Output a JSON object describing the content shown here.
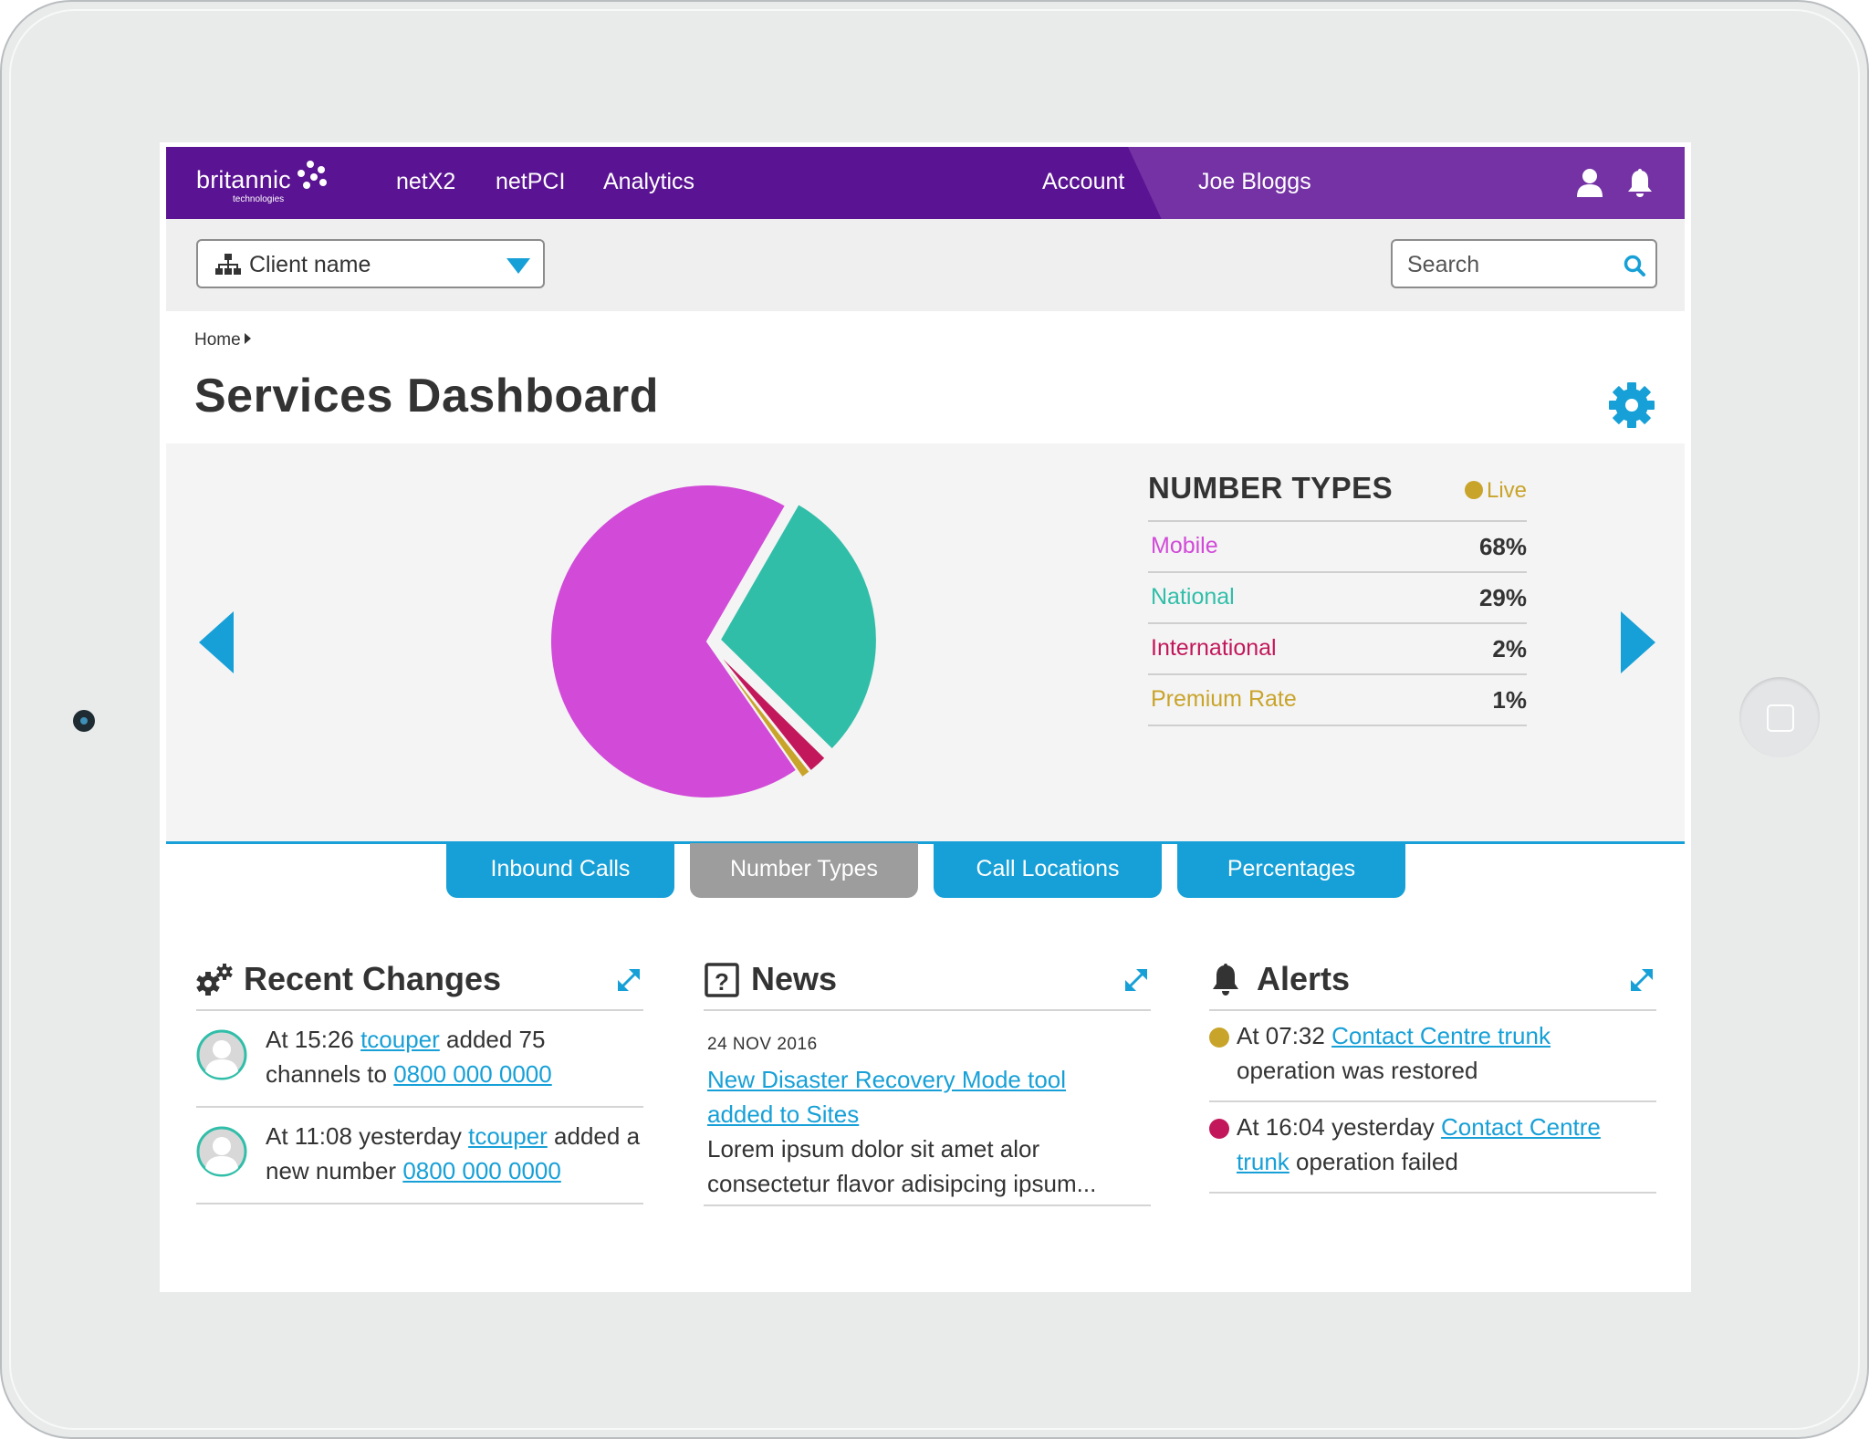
{
  "brand": {
    "name": "britannic",
    "sub": "technologies"
  },
  "nav": {
    "items": [
      "netX2",
      "netPCI",
      "Analytics"
    ],
    "account": "Account",
    "user": "Joe Bloggs"
  },
  "client_select": {
    "value": "Client name"
  },
  "search": {
    "placeholder": "Search"
  },
  "breadcrumb": {
    "home": "Home"
  },
  "page": {
    "title": "Services Dashboard"
  },
  "number_types": {
    "title": "NUMBER TYPES",
    "status": "Live",
    "rows": [
      {
        "label": "Mobile",
        "value": "68%",
        "color": "#d14bd8"
      },
      {
        "label": "National",
        "value": "29%",
        "color": "#31bea9"
      },
      {
        "label": "International",
        "value": "2%",
        "color": "#c2185b"
      },
      {
        "label": "Premium Rate",
        "value": "1%",
        "color": "#c9a42b"
      }
    ]
  },
  "chart_data": {
    "type": "pie",
    "title": "NUMBER TYPES",
    "labels": [
      "Mobile",
      "National",
      "International",
      "Premium Rate"
    ],
    "values": [
      68,
      29,
      2,
      1
    ],
    "colors": [
      "#d14bd8",
      "#31bea9",
      "#c2185b",
      "#c9a42b"
    ],
    "exploded": [
      "National",
      "International",
      "Premium Rate"
    ]
  },
  "tabs": [
    {
      "label": "Inbound Calls",
      "active": false
    },
    {
      "label": "Number Types",
      "active": true
    },
    {
      "label": "Call Locations",
      "active": false
    },
    {
      "label": "Percentages",
      "active": false
    }
  ],
  "recent_changes": {
    "title": "Recent Changes",
    "items": [
      {
        "prefix": "At 15:26 ",
        "user": "tcouper",
        "middle": " added 75 channels to ",
        "number": "0800 000 0000"
      },
      {
        "prefix": "At 11:08 yesterday ",
        "user": "tcouper",
        "middle": " added a new number ",
        "number": "0800 000 0000"
      }
    ]
  },
  "news": {
    "title": "News",
    "items": [
      {
        "date": "24 NOV 2016",
        "headline": "New Disaster Recovery Mode tool added to Sites",
        "body": "Lorem ipsum dolor sit amet alor consectetur flavor adisipcing ipsum..."
      }
    ]
  },
  "alerts": {
    "title": "Alerts",
    "items": [
      {
        "color": "#c9a42b",
        "prefix": "At 07:32 ",
        "link": "Contact Centre trunk",
        "suffix": " operation was restored"
      },
      {
        "color": "#c2185b",
        "prefix": "At 16:04 yesterday ",
        "link": "Contact Centre trunk",
        "suffix": " operation failed"
      }
    ]
  },
  "colors": {
    "brand_purple": "#5a1392",
    "accent_blue": "#17a0d7",
    "tab_inactive": "#9d9d9d"
  }
}
